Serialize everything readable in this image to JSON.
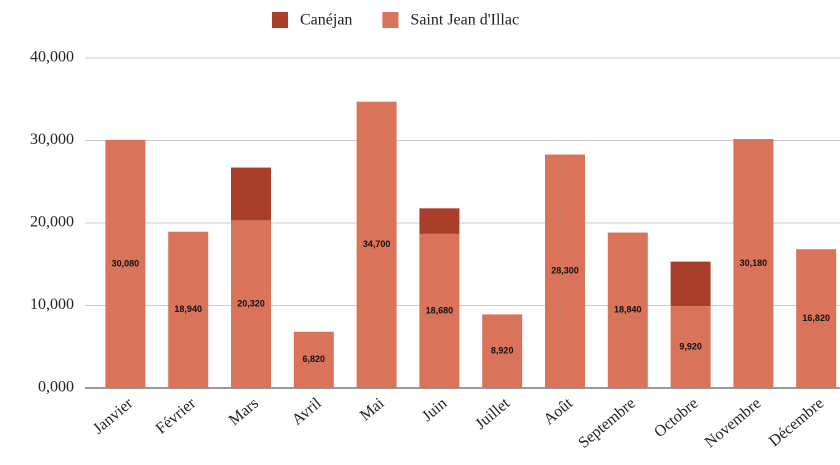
{
  "chart_data": {
    "type": "stacked_bar",
    "categories": [
      "Janvier",
      "Février",
      "Mars",
      "Avril",
      "Mai",
      "Juin",
      "Juillet",
      "Août",
      "Septembre",
      "Octobre",
      "Novembre",
      "Décembre"
    ],
    "series": [
      {
        "name": "Saint Jean d'Illac",
        "color": "#d9735a",
        "values": [
          30080,
          18940,
          20320,
          6820,
          34700,
          18680,
          8920,
          28300,
          18840,
          9920,
          30180,
          16820
        ],
        "value_labels": [
          "30,080",
          "18,940",
          "20,320",
          "6,820",
          "34,700",
          "18,680",
          "8,920",
          "28,300",
          "18,840",
          "9,920",
          "30,180",
          "16,820"
        ]
      },
      {
        "name": "Canéjan",
        "color": "#a93f2b",
        "values": [
          0,
          0,
          6400,
          0,
          0,
          3100,
          0,
          0,
          0,
          5400,
          0,
          0
        ]
      }
    ],
    "legend_order": [
      1,
      0
    ],
    "ylim": [
      0,
      40000
    ],
    "yticks": [
      {
        "value": 0,
        "label": "0,000"
      },
      {
        "value": 10000,
        "label": "10,000"
      },
      {
        "value": 20000,
        "label": "20,000"
      },
      {
        "value": 30000,
        "label": "30,000"
      },
      {
        "value": 40000,
        "label": "40,000"
      }
    ],
    "grid": true,
    "legend": "top"
  }
}
